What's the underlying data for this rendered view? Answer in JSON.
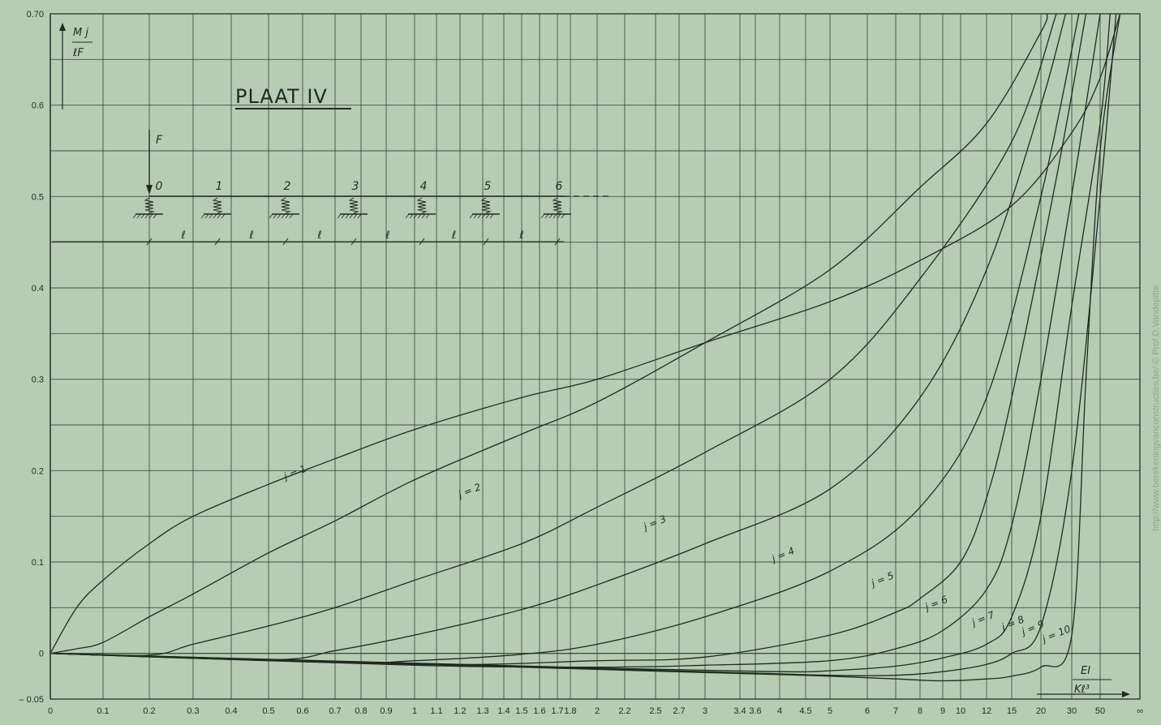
{
  "colors": {
    "background": "#b7cdb3",
    "grid": "#2f3a33",
    "ink": "#1e2a22"
  },
  "chart_data": {
    "type": "line",
    "title": "PLAAT IV",
    "ylabel": {
      "numerator": "M j",
      "denominator": "ℓF"
    },
    "xlabel": {
      "numerator": "EI",
      "denominator": "Kℓ³"
    },
    "ylim": [
      -0.05,
      0.7
    ],
    "y_ticks": [
      "0.70",
      "0.6",
      "0.5",
      "0.4",
      "0.3",
      "0.2",
      "0.1",
      "0",
      "– 0.05"
    ],
    "x_ticks": [
      "0",
      "0.1",
      "0.2",
      "0.3",
      "0.4",
      "0.5",
      "0.6",
      "0.7",
      "0.8",
      "0.9",
      "1",
      "1.1",
      "1.2",
      "1.3",
      "1.4",
      "1.5",
      "1.6",
      "1.7",
      "1.8",
      "2",
      "2.2",
      "2.5",
      "2.7",
      "3",
      "3.4",
      "3.6",
      "4",
      "4.5",
      "5",
      "6",
      "7",
      "8",
      "9",
      "10",
      "12",
      "15",
      "20",
      "30",
      "50",
      "∞"
    ],
    "grid": true,
    "series": [
      {
        "name": "j = 1",
        "points": [
          [
            0,
            0
          ],
          [
            0.05,
            0.05
          ],
          [
            0.1,
            0.08
          ],
          [
            0.2,
            0.12
          ],
          [
            0.3,
            0.15
          ],
          [
            0.5,
            0.185
          ],
          [
            0.7,
            0.213
          ],
          [
            1,
            0.245
          ],
          [
            1.5,
            0.28
          ],
          [
            2,
            0.3
          ],
          [
            3,
            0.34
          ],
          [
            5,
            0.385
          ],
          [
            8,
            0.43
          ],
          [
            15,
            0.49
          ],
          [
            30,
            0.57
          ],
          [
            50,
            0.63
          ],
          [
            60,
            0.7
          ]
        ]
      },
      {
        "name": "j = 2",
        "points": [
          [
            0,
            0
          ],
          [
            0.05,
            0.005
          ],
          [
            0.1,
            0.012
          ],
          [
            0.2,
            0.04
          ],
          [
            0.3,
            0.065
          ],
          [
            0.5,
            0.11
          ],
          [
            0.7,
            0.145
          ],
          [
            1,
            0.19
          ],
          [
            1.5,
            0.24
          ],
          [
            2,
            0.275
          ],
          [
            3,
            0.34
          ],
          [
            5,
            0.42
          ],
          [
            8,
            0.51
          ],
          [
            12,
            0.58
          ],
          [
            20,
            0.68
          ],
          [
            22,
            0.7
          ]
        ]
      },
      {
        "name": "j = 3",
        "points": [
          [
            0,
            0
          ],
          [
            0.2,
            -0.002
          ],
          [
            0.3,
            0.01
          ],
          [
            0.5,
            0.03
          ],
          [
            0.7,
            0.05
          ],
          [
            1,
            0.08
          ],
          [
            1.5,
            0.12
          ],
          [
            2,
            0.16
          ],
          [
            3,
            0.22
          ],
          [
            5,
            0.3
          ],
          [
            8,
            0.41
          ],
          [
            15,
            0.56
          ],
          [
            25,
            0.7
          ]
        ]
      },
      {
        "name": "j = 4",
        "points": [
          [
            0,
            0
          ],
          [
            0.5,
            -0.007
          ],
          [
            0.7,
            0.003
          ],
          [
            1,
            0.02
          ],
          [
            1.5,
            0.048
          ],
          [
            2,
            0.075
          ],
          [
            3,
            0.12
          ],
          [
            5,
            0.18
          ],
          [
            8,
            0.28
          ],
          [
            12,
            0.42
          ],
          [
            20,
            0.6
          ],
          [
            28,
            0.7
          ]
        ]
      },
      {
        "name": "j = 5",
        "points": [
          [
            0,
            0
          ],
          [
            0.7,
            -0.01
          ],
          [
            1,
            -0.008
          ],
          [
            1.5,
            -0.001
          ],
          [
            2,
            0.01
          ],
          [
            3,
            0.04
          ],
          [
            5,
            0.09
          ],
          [
            8,
            0.16
          ],
          [
            12,
            0.28
          ],
          [
            20,
            0.5
          ],
          [
            35,
            0.7
          ]
        ]
      },
      {
        "name": "j = 6",
        "points": [
          [
            0,
            0
          ],
          [
            1,
            -0.012
          ],
          [
            2,
            -0.008
          ],
          [
            3,
            -0.004
          ],
          [
            5,
            0.02
          ],
          [
            7,
            0.045
          ],
          [
            8,
            0.06
          ],
          [
            10,
            0.1
          ],
          [
            12,
            0.17
          ],
          [
            15,
            0.28
          ],
          [
            25,
            0.52
          ],
          [
            40,
            0.7
          ]
        ]
      },
      {
        "name": "j = 7",
        "points": [
          [
            0,
            0
          ],
          [
            1,
            -0.013
          ],
          [
            2,
            -0.015
          ],
          [
            3,
            -0.013
          ],
          [
            5,
            -0.008
          ],
          [
            7,
            0.005
          ],
          [
            9,
            0.025
          ],
          [
            12,
            0.07
          ],
          [
            15,
            0.14
          ],
          [
            20,
            0.3
          ],
          [
            35,
            0.55
          ],
          [
            50,
            0.7
          ]
        ]
      },
      {
        "name": "j = 8",
        "points": [
          [
            0,
            0
          ],
          [
            2,
            -0.016
          ],
          [
            4,
            -0.02
          ],
          [
            5,
            -0.019
          ],
          [
            7,
            -0.014
          ],
          [
            9,
            -0.005
          ],
          [
            12,
            0.01
          ],
          [
            15,
            0.04
          ],
          [
            20,
            0.15
          ],
          [
            30,
            0.38
          ],
          [
            50,
            0.58
          ],
          [
            55,
            0.7
          ]
        ]
      },
      {
        "name": "j = 9",
        "points": [
          [
            0,
            0
          ],
          [
            3,
            -0.02
          ],
          [
            5,
            -0.024
          ],
          [
            7,
            -0.024
          ],
          [
            9,
            -0.02
          ],
          [
            12,
            -0.012
          ],
          [
            15,
            0.0
          ],
          [
            20,
            0.03
          ],
          [
            30,
            0.2
          ],
          [
            50,
            0.5
          ],
          [
            58,
            0.7
          ]
        ]
      },
      {
        "name": "j = 10",
        "points": [
          [
            0,
            0
          ],
          [
            3,
            -0.021
          ],
          [
            5,
            -0.025
          ],
          [
            7,
            -0.028
          ],
          [
            9,
            -0.03
          ],
          [
            12,
            -0.028
          ],
          [
            15,
            -0.025
          ],
          [
            20,
            -0.015
          ],
          [
            30,
            0.02
          ],
          [
            40,
            0.3
          ],
          [
            50,
            0.55
          ],
          [
            60,
            0.7
          ]
        ]
      }
    ],
    "diagram": {
      "load_label": "F",
      "node_labels": [
        "0",
        "1",
        "2",
        "3",
        "4",
        "5",
        "6"
      ],
      "span_labels": [
        "ℓ",
        "ℓ",
        "ℓ",
        "ℓ",
        "ℓ",
        "ℓ"
      ]
    }
  },
  "watermark": "http://www.berekeningvanconstructies.be/     © Prof.D.Vandepitte"
}
